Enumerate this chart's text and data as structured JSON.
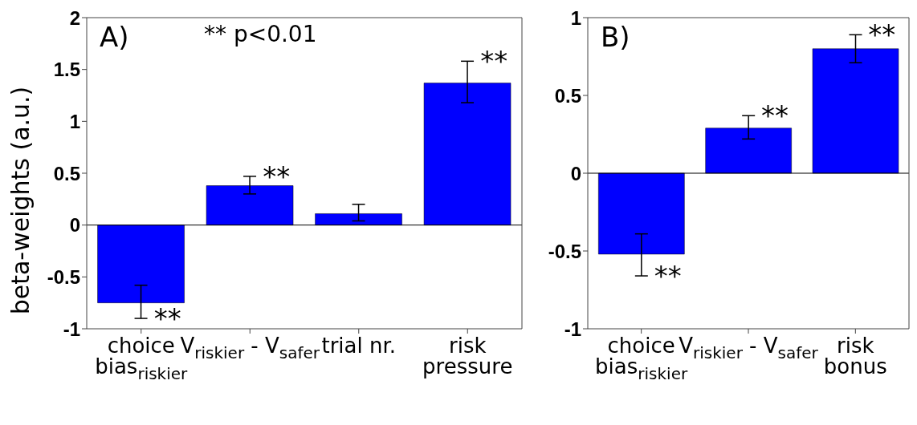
{
  "chart_data": [
    {
      "type": "bar",
      "ylabel": "beta-weights (a.u.)",
      "categories": [
        "choice\nbias$_{riskier}$",
        "V$_{riskier}$ - V$_{safer}$",
        "trial nr.",
        "risk\npressure"
      ],
      "values": [
        -0.75,
        0.38,
        0.11,
        1.37
      ],
      "color": "#0000ff",
      "errors": [
        [
          -0.9,
          -0.58
        ],
        [
          0.3,
          0.47
        ],
        [
          0.04,
          0.2
        ],
        [
          1.18,
          1.58
        ]
      ],
      "ylim": [
        -1,
        2
      ],
      "yticks": [
        -1,
        -0.5,
        0,
        0.5,
        1,
        1.5,
        2
      ],
      "grid": false,
      "ref_lines": [
        {
          "axis": "y",
          "value": 0,
          "color": "#000000"
        }
      ],
      "annotations": [
        "A)",
        "** p<0.01",
        {
          "text": "**",
          "x": "choice\nbias$_{riskier}$",
          "y": -0.9
        },
        {
          "text": "**",
          "x": "V$_{riskier}$ - V$_{safer}$",
          "y": 0.47
        },
        {
          "text": "**",
          "x": "risk\npressure",
          "y": 1.58
        }
      ]
    },
    {
      "type": "bar",
      "categories": [
        "choice\nbias$_{riskier}$",
        "V$_{riskier}$ - V$_{safer}$",
        "risk\nbonus"
      ],
      "values": [
        -0.52,
        0.29,
        0.8
      ],
      "color": "#0000ff",
      "errors": [
        [
          -0.66,
          -0.39
        ],
        [
          0.22,
          0.37
        ],
        [
          0.71,
          0.89
        ]
      ],
      "ylim": [
        -1,
        1
      ],
      "yticks": [
        -1,
        -0.5,
        0,
        0.5,
        1
      ],
      "grid": false,
      "ref_lines": [
        {
          "axis": "y",
          "value": 0,
          "color": "#000000"
        }
      ],
      "annotations": [
        "B)",
        {
          "text": "**",
          "x": "choice\nbias$_{riskier}$",
          "y": -0.66
        },
        {
          "text": "**",
          "x": "V$_{riskier}$ - V$_{safer}$",
          "y": 0.37
        },
        {
          "text": "**",
          "x": "risk\nbonus",
          "y": 0.89
        }
      ]
    }
  ]
}
